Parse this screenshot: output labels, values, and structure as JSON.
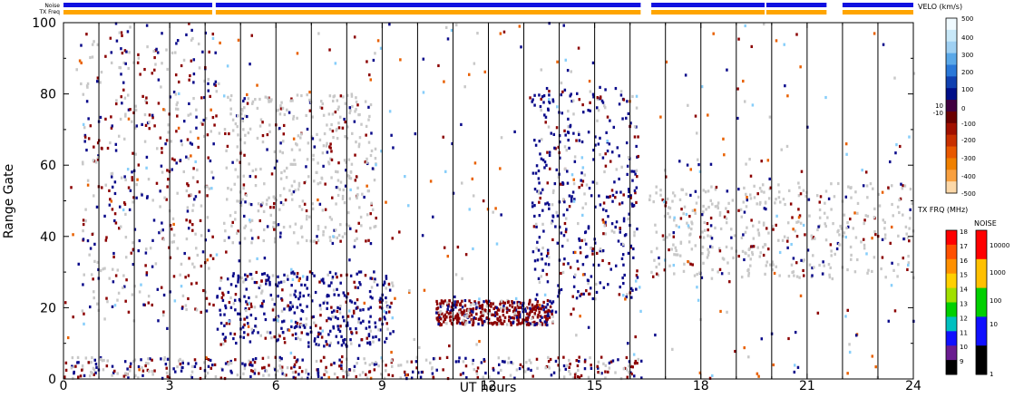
{
  "chart_data": {
    "type": "heatmap",
    "title": "",
    "xlabel": "UT hours",
    "ylabel": "Range Gate",
    "xlim": [
      0,
      24
    ],
    "ylim": [
      0,
      100
    ],
    "x_ticks": [
      "0",
      "3",
      "6",
      "9",
      "12",
      "15",
      "18",
      "21",
      "24"
    ],
    "y_ticks": [
      "0",
      "20",
      "40",
      "60",
      "80",
      "100"
    ],
    "strip_labels": {
      "noise": "Noise",
      "txfreq": "TX Freq"
    },
    "strip_segments": [
      [
        0,
        4.2
      ],
      [
        4.3,
        16.3
      ],
      [
        16.6,
        19.8
      ],
      [
        19.85,
        21.55
      ],
      [
        22.0,
        24.0
      ]
    ],
    "data_gaps": [
      [
        16.3,
        16.6
      ],
      [
        21.55,
        22.0
      ]
    ],
    "vertical_markers_hours": [
      1,
      2,
      3,
      4,
      5,
      6,
      7,
      8,
      9,
      10,
      11,
      12,
      13,
      14,
      15,
      16,
      17,
      18,
      19,
      20,
      21,
      22,
      23
    ],
    "scatter_regions": [
      {
        "name": "ground scatter band A",
        "x": [
          0.5,
          4.3
        ],
        "y": [
          18,
          100
        ],
        "class": "mixed"
      },
      {
        "name": "ground scatter band B",
        "x": [
          4.5,
          8.8
        ],
        "y": [
          38,
          80
        ],
        "class": "gray"
      },
      {
        "name": "blue band 5-9 UT",
        "x": [
          4.3,
          9.3
        ],
        "y": [
          9,
          30
        ],
        "class": "blue"
      },
      {
        "name": "red band 11-13 UT",
        "x": [
          10.5,
          13.8
        ],
        "y": [
          15,
          22
        ],
        "class": "red"
      },
      {
        "name": "descending echoes 13-16 UT",
        "x": [
          13.2,
          16.2
        ],
        "y": [
          22,
          82
        ],
        "class": "blue"
      },
      {
        "name": "ground scatter 16.5-24 UT",
        "x": [
          16.5,
          24
        ],
        "y": [
          28,
          55
        ],
        "class": "gray"
      },
      {
        "name": "near range echoes",
        "x": [
          0,
          16.3
        ],
        "y": [
          0,
          6
        ],
        "class": "mixed"
      }
    ],
    "colorbars": {
      "velocity": {
        "title": "VELO (km/s)",
        "ticks": [
          "500",
          "400",
          "300",
          "200",
          "100",
          "10",
          "0",
          "-10",
          "-100",
          "-200",
          "-300",
          "-400",
          "-500"
        ],
        "colors": [
          "#f0faff",
          "#c8e8f8",
          "#9fd0f2",
          "#5aa8e8",
          "#2a78d8",
          "#1040b0",
          "#000e88",
          "#400040",
          "#6a0000",
          "#a01000",
          "#c83000",
          "#e85800",
          "#f08000",
          "#f8a040",
          "#fcd8a8"
        ]
      },
      "txfreq": {
        "title": "TX FRQ (MHz)",
        "ticks": [
          "18",
          "17",
          "16",
          "15",
          "14",
          "13",
          "12",
          "11",
          "10",
          "9"
        ],
        "colors": [
          "#ff0000",
          "#ff5000",
          "#ff9000",
          "#ffd000",
          "#a0e000",
          "#00d000",
          "#00c0c0",
          "#1010ff",
          "#6a1c90",
          "#000000"
        ]
      },
      "noise": {
        "title": "NOISE",
        "ticks": [
          "10000",
          "1000",
          "100",
          "10",
          "1"
        ],
        "colors": [
          "#ff0000",
          "#ffc000",
          "#00d000",
          "#1010ff",
          "#000000"
        ]
      }
    },
    "point_colors": {
      "gray": "#c8c8c8",
      "red": "#8b0000",
      "blue": "#0a0a8a",
      "lightblue": "#87cefa",
      "orange": "#e86000",
      "strip_blue": "#1010e0",
      "strip_orange": "#ffa500"
    }
  }
}
